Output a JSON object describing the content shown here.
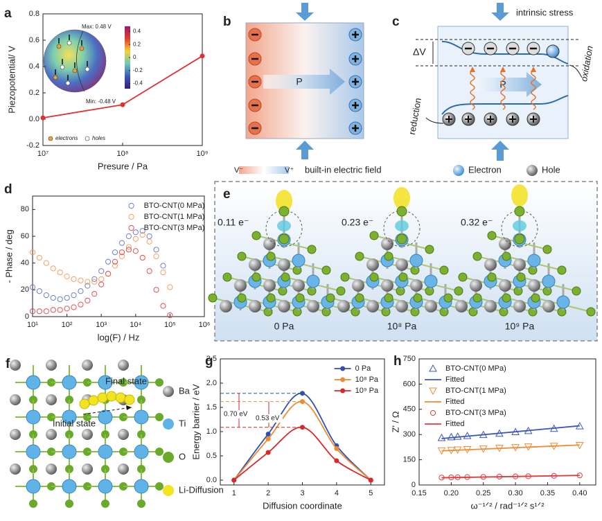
{
  "chart_data": [
    {
      "type": "line",
      "panel_label": "a",
      "xlabel": "Presure / Pa",
      "ylabel": "Piezopotential/ V",
      "xscale": "log",
      "x": [
        10000000,
        100000000,
        1000000000
      ],
      "values": [
        0.01,
        0.11,
        0.48
      ],
      "color": "#e03030",
      "marker": "circle",
      "xlim": [
        10000000,
        1000000000
      ],
      "xticks": [
        {
          "value": 10000000,
          "label": "10⁷"
        },
        {
          "value": 100000000,
          "label": "10⁸"
        },
        {
          "value": 1000000000,
          "label": "10⁹"
        }
      ],
      "ylim": [
        -0.2,
        0.8
      ],
      "yticks": [
        -0.2,
        {
          "value": 0,
          "label": "0.0"
        },
        0.2,
        0.4,
        0.6,
        0.8
      ],
      "inset": {
        "max_label": "Max: 0.48 V",
        "min_label": "Min: -0.48 V",
        "colorbar_lim": [
          -0.48,
          0.48
        ],
        "colorbar_ticks": [
          0.4,
          0.2,
          0,
          -0.2,
          -0.4
        ],
        "legend": [
          "electrons",
          "holes"
        ]
      }
    },
    {
      "type": "scatter",
      "panel_label": "d",
      "xlabel": "log(F) / Hz",
      "ylabel": "- Phase / deg",
      "xscale": "log",
      "legend": "top-right",
      "marker": "circle-open",
      "x": [
        10,
        15.85,
        25.12,
        39.81,
        63.1,
        100,
        158.5,
        251.2,
        398.1,
        631,
        1000,
        1585,
        2512,
        3981,
        6310,
        10000,
        15850,
        25120,
        39810,
        63100,
        100000
      ],
      "series": [
        {
          "name": "BTO-CNT(0 MPa)",
          "color": "#6f7fd0",
          "values": [
            22,
            19,
            16,
            14,
            13,
            14,
            16,
            19,
            23,
            28,
            34,
            41,
            48,
            55,
            60,
            63,
            64,
            60,
            50,
            38,
            null
          ]
        },
        {
          "name": "BTO-CNT(1 MPa)",
          "color": "#f5a060",
          "values": [
            48,
            44,
            40,
            36,
            33,
            30,
            28,
            27,
            26,
            26,
            28,
            32,
            38,
            45,
            52,
            58,
            61,
            56,
            45,
            33,
            22
          ]
        },
        {
          "name": "BTO-CNT(3 MPa)",
          "color": "#e05050",
          "values": [
            4,
            4,
            4,
            5,
            5,
            6,
            7,
            9,
            12,
            17,
            24,
            32,
            41,
            48,
            50,
            49,
            44,
            34,
            20,
            8,
            1
          ]
        }
      ],
      "xlim": [
        10,
        1000000
      ],
      "xticks": [
        {
          "value": 10,
          "label": "10¹"
        },
        {
          "value": 100,
          "label": "10²"
        },
        {
          "value": 1000,
          "label": "10³"
        },
        {
          "value": 10000,
          "label": "10⁴"
        },
        {
          "value": 100000,
          "label": "10⁵"
        },
        {
          "value": 1000000,
          "label": "10⁶"
        }
      ],
      "ylim": [
        0,
        90
      ],
      "yticks": [
        0,
        20,
        40,
        60,
        80
      ]
    },
    {
      "type": "line",
      "panel_label": "g",
      "xlabel": "Diffusion coordinate",
      "ylabel": "Energy barrier / eV",
      "smooth": true,
      "legend": "top-right",
      "marker": "circle",
      "x": [
        1,
        2,
        3,
        4,
        5
      ],
      "series": [
        {
          "name": "0 Pa",
          "color": "#3050b0",
          "values": [
            0,
            0.95,
            1.79,
            0.71,
            0
          ]
        },
        {
          "name": "10⁸ Pa",
          "color": "#f08a30",
          "values": [
            0,
            0.85,
            1.62,
            0.65,
            0
          ]
        },
        {
          "name": "10⁹ Pa",
          "color": "#d82828",
          "values": [
            0,
            0.57,
            1.09,
            0.4,
            0
          ]
        }
      ],
      "xlim": [
        0.6,
        5.4
      ],
      "xticks": [
        1,
        2,
        3,
        4,
        5
      ],
      "ylim": [
        -0.1,
        2.5
      ],
      "yticks": [
        {
          "value": 0,
          "label": "0.0"
        },
        0.5,
        {
          "value": 1,
          "label": "1.0"
        },
        1.5,
        {
          "value": 2,
          "label": "2.0"
        },
        2.5
      ],
      "annotations": [
        "0.70 eV",
        "0.53 eV"
      ]
    },
    {
      "type": "scatter",
      "panel_label": "h",
      "xlabel": "ω⁻¹ᐟ² / rad⁻¹ᐟ² s¹ᐟ²",
      "ylabel": "Z' / Ω",
      "legend": "top-left",
      "series": [
        {
          "name": "BTO-CNT(0 MPa)",
          "color": "#3a55c0",
          "marker": "triangle-up-open",
          "x": [
            0.185,
            0.2,
            0.21,
            0.225,
            0.25,
            0.275,
            0.3,
            0.32,
            0.36,
            0.4
          ],
          "values": [
            280,
            285,
            288,
            292,
            298,
            306,
            315,
            322,
            335,
            350
          ]
        },
        {
          "name": "Fitted",
          "color": "#3a55c0",
          "type": "line",
          "x": [
            0.185,
            0.4
          ],
          "values": [
            276,
            352
          ]
        },
        {
          "name": "BTO-CNT(1 MPa)",
          "color": "#f08a30",
          "marker": "triangle-down-open",
          "x": [
            0.185,
            0.2,
            0.21,
            0.225,
            0.25,
            0.275,
            0.3,
            0.32,
            0.36,
            0.4
          ],
          "values": [
            205,
            207,
            210,
            212,
            216,
            220,
            224,
            228,
            232,
            237
          ]
        },
        {
          "name": "Fitted",
          "color": "#f08a30",
          "type": "line",
          "x": [
            0.185,
            0.4
          ],
          "values": [
            203,
            238
          ]
        },
        {
          "name": "BTO-CNT(3 MPa)",
          "color": "#e03a3a",
          "marker": "circle-open",
          "x": [
            0.185,
            0.2,
            0.21,
            0.225,
            0.25,
            0.275,
            0.3,
            0.32,
            0.36,
            0.4
          ],
          "values": [
            44,
            45,
            46,
            47,
            48,
            50,
            51,
            52,
            54,
            57
          ]
        },
        {
          "name": "Fitted",
          "color": "#e03a3a",
          "type": "line",
          "x": [
            0.185,
            0.4
          ],
          "values": [
            43,
            57
          ]
        }
      ],
      "xlim": [
        0.15,
        0.425
      ],
      "xticks": [
        0.15,
        {
          "value": 0.2,
          "label": "0.20"
        },
        0.25,
        {
          "value": 0.3,
          "label": "0.30"
        },
        0.35,
        {
          "value": 0.4,
          "label": "0.40"
        }
      ],
      "ylim": [
        0,
        750
      ],
      "yticks": [
        0,
        150,
        300,
        450,
        600,
        750
      ]
    }
  ],
  "diagrams": {
    "b": {
      "panel_label": "b",
      "polarization": "P",
      "legend": {
        "neg": "V⁻",
        "pos": "V⁺",
        "text": "built-in electric field"
      }
    },
    "c": {
      "panel_label": "c",
      "stress": "intrinsic stress",
      "delta_v": "ΔV",
      "polarization": "P",
      "oxidation": "oxidation",
      "reduction": "reduction",
      "legend": [
        "Electron",
        "Hole"
      ]
    },
    "e": {
      "panel_label": "e",
      "structures": [
        {
          "charge": "0.11 e⁻",
          "pressure": "0 Pa"
        },
        {
          "charge": "0.23 e⁻",
          "pressure": "10⁸ Pa"
        },
        {
          "charge": "0.32 e⁻",
          "pressure": "10⁹ Pa"
        }
      ]
    },
    "f": {
      "panel_label": "f",
      "final": "Final state",
      "initial": "Initial state",
      "legend": [
        "Ba",
        "Ti",
        "O",
        "Li-Diffusion"
      ]
    }
  }
}
